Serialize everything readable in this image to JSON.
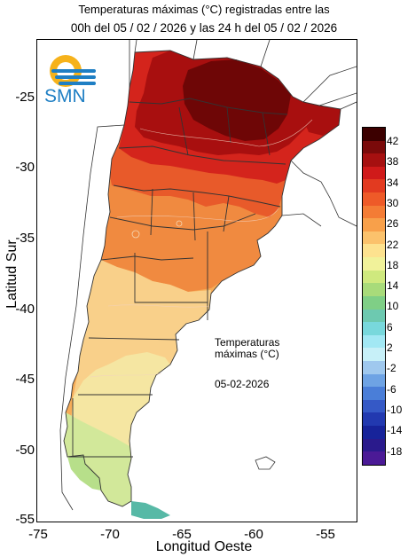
{
  "header": {
    "line1": "Temperaturas máximas (°C) registradas entre las",
    "line2": "00h del 05 / 02 / 2026 y las 24 h del 05 / 02 / 2026"
  },
  "axes": {
    "xlabel": "Longitud Oeste",
    "ylabel": "Latitud Sur",
    "xticks": [
      "-75",
      "-70",
      "-65",
      "-60",
      "-55"
    ],
    "yticks": [
      "-25",
      "-30",
      "-35",
      "-40",
      "-45",
      "-50",
      "-55"
    ],
    "xrange": [
      -75,
      -52.5
    ],
    "yrange": [
      -55.5,
      -21.5
    ]
  },
  "annotation": {
    "line1": "Temperaturas",
    "line2": "máximas (°C)",
    "date": "05-02-2026"
  },
  "logo": {
    "text": "SMN",
    "icon": "smn-sun-wave-logo-icon"
  },
  "legend": {
    "labels": [
      "42",
      "38",
      "34",
      "30",
      "26",
      "22",
      "18",
      "14",
      "10",
      "6",
      "2",
      "-2",
      "-6",
      "-10",
      "-14",
      "-18"
    ],
    "colors": [
      "#3c0000",
      "#7a0a0a",
      "#a61010",
      "#d01a1a",
      "#e23a20",
      "#ee5a28",
      "#f47c35",
      "#f8a04a",
      "#fbc26c",
      "#fde28f",
      "#f1f29a",
      "#cfe97e",
      "#a8db7a",
      "#7fcf86",
      "#6dc9b0",
      "#78d8dc",
      "#a2e8f4",
      "#c7f0f8",
      "#9fc8ee",
      "#6ea3e4",
      "#4a7ed8",
      "#3559c6",
      "#2239b0",
      "#17239a",
      "#2a1a8c",
      "#4b1a96"
    ]
  },
  "map_colors": {
    "ocean": "#ffffff",
    "hot_core": "#6e0606",
    "very_hot": "#a80f0f",
    "hot": "#d4241c",
    "warm": "#e85a2a",
    "mild_warm": "#f08a40",
    "mild": "#f6ac58",
    "cool_mild": "#f9d08a",
    "cool": "#f5e6a2",
    "pale": "#e8eba0",
    "green_pale": "#d2e89a",
    "green": "#b7df8a",
    "teal": "#57b9a6",
    "border": "#333333"
  }
}
